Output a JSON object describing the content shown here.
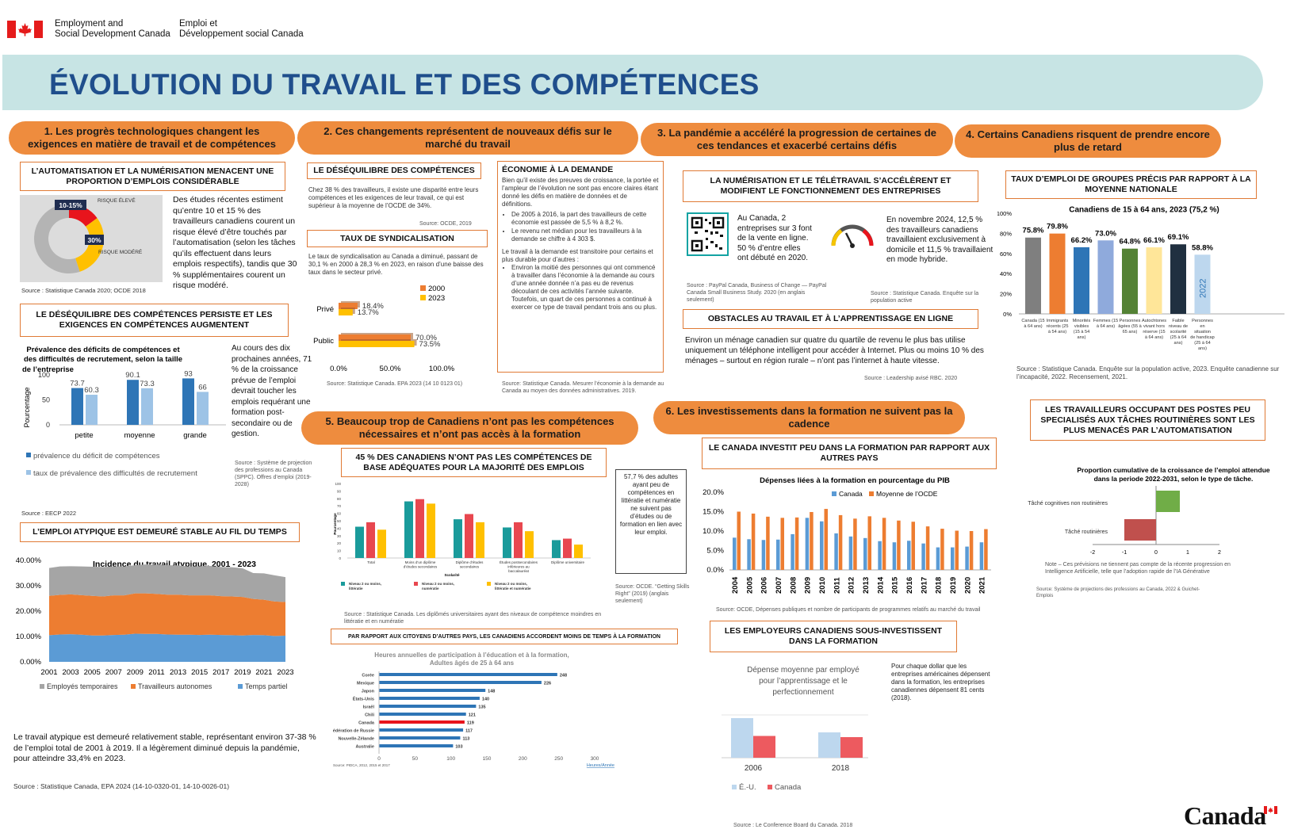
{
  "header": {
    "dept_en_line1": "Employment and",
    "dept_en_line2": "Social Development Canada",
    "dept_fr_line1": "Emploi et",
    "dept_fr_line2": "Développement social Canada",
    "wordmark": "Canada"
  },
  "title": "ÉVOLUTION DU TRAVAIL ET DES COMPÉTENCES",
  "sections": {
    "s1": "1. Les progrès technologiques changent les exigences en matière de travail et de compétences",
    "s2": "2. Ces changements représentent de nouveaux défis sur le marché du travail",
    "s3": "3. La pandémie a accéléré la progression de certaines de ces tendances et exacerbé certains défis",
    "s4": "4. Certains Canadiens risquent de prendre encore plus de retard",
    "s5": "5. Beaucoup trop de Canadiens n’ont pas les compétences nécessaires et n’ont pas accès à la formation",
    "s6": "6. Les investissements dans la formation ne suivent pas la cadence"
  },
  "auto": {
    "heading": "L’AUTOMATISATION ET LA NUMÉRISATION MENACENT UNE PROPORTION D’EMPLOIS CONSIDÉRABLE",
    "text": "Des études récentes estiment qu’entre 10 et 15 % des travailleurs canadiens courent un risque élevé d’être touchés par l’automatisation (selon les tâches qu’ils effectuent dans leurs emplois respectifs), tandis que 30 % supplémentaires courent un risque modéré.",
    "source": "Source : Statistique Canada 2020; OCDE 2018"
  },
  "skills_gap": {
    "heading": "LE DÉSÉQUILIBRE DES COMPÉTENCES PERSISTE ET LES EXIGENCES EN COMPÉTENCES AUGMENTENT",
    "side_text": "Au cours des dix prochaines années, 71 % de la croissance prévue de l’emploi devrait toucher les emplois requérant une formation post-secondaire ou de gestion.",
    "side_source": "Source : Système de projection des professions au Canada (SPPC). Offres d’emploi (2019-2028)",
    "source": "Source : EECP 2022"
  },
  "atypical": {
    "heading": "L’EMPLOI ATYPIQUE EST DEMEURÉ STABLE AU FIL DU TEMPS",
    "text": "Le travail atypique est demeuré relativement stable, représentant environ 37-38 % de l’emploi total de 2001 à 2019. Il a légèrement diminué depuis la pandémie, pour atteindre 33,4% en 2023.",
    "source": "Source : Statistique Canada, EPA 2024  (14-10-0320-01, 14-10-0026-01)"
  },
  "imbalance": {
    "heading": "LE DÉSÉQUILIBRE DES COMPÉTENCES",
    "text": "Chez 38 % des travailleurs, il existe une disparité entre leurs compétences et les exigences de leur travail, ce qui est supérieur à la moyenne de l’OCDE de 34%.",
    "source": "Source: OCDE, 2019"
  },
  "union": {
    "heading": "TAUX DE SYNDICALISATION",
    "text": "Le taux de syndicalisation au Canada a diminué, passant de 30,1 % en 2000  à 28,3 % en 2023, en raison d’une baisse des taux dans le secteur privé.",
    "source": "Source: Statistique Canada. EPA 2023 (14 10 0123 01)"
  },
  "gig": {
    "heading": "ÉCONOMIE À LA DEMANDE",
    "intro": "Bien qu’il existe des preuves de croissance, la portée et l’ampleur de l’évolution ne sont pas encore claires étant donné les défis en matière de données et de définitions.",
    "bullet1": "De 2005 à 2016, la part des travailleurs de cette économie est passée de 5,5 % à 8,2 %.",
    "bullet2": "Le revenu net médian pour les travailleurs à la demande se chiffre à 4 303 $.",
    "mid": "Le travail à la demande est transitoire pour certains et plus durable pour d’autres :",
    "bullet3": "Environ la moitié des personnes qui ont commencé à travailler dans l’économie à la demande au cours d’une année donnée n’a pas eu de revenus découlant de ces activités l’année suivante. Toutefois, un quart de ces personnes a continué à exercer ce type de travail pendant trois ans ou plus.",
    "source": "Source: Statistique Canada. Mesurer l’économie à la demande au Canada au moyen des données administratives. 2019."
  },
  "digital": {
    "heading": "LA NUMÉRISATION ET LE TÉLÉTRAVAIL S’ACCÉLÈRENT ET MODIFIENT LE FONCTIONNEMENT DES ENTREPRISES",
    "qr_text": "Au Canada, 2 entreprises sur 3 font de la vente en ligne. 50 % d’entre elles ont débuté en 2020.",
    "qr_source": "Source : PayPal Canada, Business of Change — PayPal Canada Small Business Study. 2020  (en anglais seulement)",
    "remote_text": "En novembre 2024, 12,5 % des travailleurs canadiens travaillaient exclusivement à domicile et 11,5 % travaillaient en mode hybride.",
    "remote_source": "Source : Statistique Canada. Enquête sur la population active"
  },
  "online": {
    "heading": "OBSTACLES AU TRAVAIL ET À L’APPRENTISSAGE EN LIGNE",
    "text": "Environ un ménage canadien sur quatre du quartile de revenu le plus bas utilise uniquement un téléphone intelligent pour accéder à Internet. Plus ou moins 10 % des ménages – surtout en région rurale – n’ont pas l’internet à haute vitesse.",
    "source": "Source : Leadership avisé RBC. 2020"
  },
  "groups": {
    "heading": "TAUX D’EMPLOI DE GROUPES PRÉCIS PAR RAPPORT À LA MOYENNE NATIONALE",
    "source": "Source : Statistique Canada. Enquête sur la population active, 2023. Enquête canadienne sur l’incapacité, 2022. Recensement, 2021."
  },
  "routine": {
    "heading": "LES TRAVAILLEURS OCCUPANT DES POSTES PEU SPECIALISÉS AUX TÂCHES ROUTINIÈRES SONT LES PLUS MENACÉS PAR L’AUTOMATISATION",
    "note": "Note – Ces prévisions ne tiennent pas compte de la récente progression en Intelligence Artificielle, telle que l’adoption rapide de l’IA Générative",
    "source": "Source: Système de projections des professions au Canada,  2022 & Guichet-Emplois"
  },
  "basic": {
    "heading": "45 % DES CANADIENS N’ONT PAS LES COMPÉTENCES DE BASE ADÉQUATES POUR LA MAJORITÉ DES EMPLOIS",
    "side_text": "57,7 % des adultes ayant peu de compétences en littératie et numératie ne suivent pas d’études ou de formation en lien avec leur emploi.",
    "side_source": "Source: OCDE. “Getting Skills Right” (2019) (anglais seulement)",
    "source": "Source : Statistique Canada. Les diplômés universitaires ayant des niveaux de compétence moindres en littératie et en numératie"
  },
  "hours": {
    "heading": "PAR RAPPORT AUX CITOYENS D’AUTRES PAYS, LES CANADIENS ACCORDENT MOINS DE TEMPS À LA FORMATION"
  },
  "invest": {
    "heading": "LE CANADA INVESTIT PEU DANS LA FORMATION PAR RAPPORT AUX AUTRES PAYS",
    "source": "Source: OCDE, Dépenses publiques et nombre de participants de programmes relatifs au marché du travail"
  },
  "employers": {
    "heading": "LES EMPLOYEURS CANADIENS SOUS-INVESTISSENT DANS LA FORMATION",
    "text": "Pour chaque dollar que les entreprises américaines dépensent dans la formation, les entreprises canadiennes dépensent 81 cents (2018).",
    "source": "Source : Le Conference Board du Canada. 2018"
  },
  "chart_data": [
    {
      "id": "automation_risk",
      "type": "pie",
      "slices": [
        {
          "label": "RISQUE ÉLEVÉ",
          "tag": "10-15%",
          "value": 15,
          "color": "#e8141c"
        },
        {
          "label": "RISQUE MODÉRÉ",
          "tag": "30%",
          "value": 30,
          "color": "#ffc000"
        },
        {
          "label": "",
          "value": 55,
          "color": "#b4b4b4"
        }
      ]
    },
    {
      "id": "skill_deficits",
      "type": "bar",
      "title": "Prévalence des déficits de compétences et des difficultés de recrutement, selon la taille de l’entreprise",
      "ylabel": "Pourcentage",
      "ylim": [
        0,
        100
      ],
      "yticks": [
        0,
        50,
        100
      ],
      "categories": [
        "petite",
        "moyenne",
        "grande"
      ],
      "series": [
        {
          "name": "prévalence du déficit de compétences",
          "values": [
            73.7,
            90.1,
            93
          ],
          "color": "#2e75b6"
        },
        {
          "name": "taux de prévalence des difficultés de recrutement",
          "values": [
            60.3,
            73.3,
            66
          ],
          "color": "#9dc3e6"
        }
      ]
    },
    {
      "id": "atypical_work",
      "type": "area",
      "title": "Incidence du travail atypique, 2001 - 2023",
      "x": [
        2001,
        2002,
        2003,
        2004,
        2005,
        2006,
        2007,
        2008,
        2009,
        2010,
        2011,
        2012,
        2013,
        2014,
        2015,
        2016,
        2017,
        2018,
        2019,
        2020,
        2021,
        2022,
        2023
      ],
      "xticks": [
        2001,
        2003,
        2005,
        2007,
        2009,
        2011,
        2013,
        2015,
        2017,
        2019,
        2021,
        2023
      ],
      "ylim": [
        0,
        0.4
      ],
      "yticks": [
        "0.00%",
        "10.00%",
        "20.00%",
        "30.00%",
        "40.00%"
      ],
      "series": [
        {
          "name": "Temps partiel",
          "color": "#5b9bd5",
          "values": [
            10.5,
            10.8,
            10.9,
            10.7,
            10.4,
            10.4,
            10.6,
            10.7,
            11.1,
            11.0,
            11.0,
            10.8,
            10.7,
            10.7,
            10.6,
            10.7,
            10.6,
            10.5,
            10.4,
            10.6,
            10.5,
            10.2,
            10.3
          ]
        },
        {
          "name": "Travailleurs autonomes",
          "color": "#ed7d31",
          "values": [
            15.5,
            15.6,
            15.7,
            15.6,
            15.6,
            15.4,
            15.6,
            15.5,
            15.9,
            16.0,
            15.8,
            15.7,
            15.8,
            15.5,
            15.6,
            15.5,
            15.3,
            15.3,
            15.2,
            14.2,
            14.0,
            13.6,
            13.3
          ]
        },
        {
          "name": "Employés temporaires",
          "color": "#a5a5a5",
          "values": [
            11.0,
            11.2,
            11.1,
            11.3,
            11.5,
            11.6,
            11.4,
            11.4,
            11.1,
            11.4,
            11.5,
            11.6,
            11.5,
            11.4,
            11.5,
            11.6,
            11.5,
            11.5,
            11.3,
            10.2,
            10.4,
            10.3,
            9.8
          ]
        }
      ]
    },
    {
      "id": "unionization",
      "type": "bar",
      "categories": [
        "Privé",
        "Public"
      ],
      "xlim": [
        0,
        100
      ],
      "xticks": [
        "0.0%",
        "50.0%",
        "100.0%"
      ],
      "series": [
        {
          "name": "2000",
          "values": [
            18.4,
            70.0
          ],
          "labels": [
            "18.4%",
            "70.0%"
          ],
          "color": "#ed7d31"
        },
        {
          "name": "2023",
          "values": [
            13.7,
            73.5
          ],
          "labels": [
            "13.7%",
            "73.5%"
          ],
          "color": "#ffc000"
        }
      ]
    },
    {
      "id": "group_employment",
      "type": "bar",
      "title": "Canadiens de 15 à 64 ans, 2023 (75,2 %)",
      "ylim": [
        0,
        100
      ],
      "yticks": [
        "0%",
        "20%",
        "40%",
        "60%",
        "80%",
        "100%"
      ],
      "categories": [
        "Canada (15 à 64 ans)",
        "Immigrants récents (25 à 54 ans)",
        "Minorités visibles (15 à 54 ans)",
        "Femmes (15 à 64 ans)",
        "Personnes âgées (55 à 65 ans)",
        "Autochtones vivant hors réserve (15 à 64 ans)",
        "Faible niveau de scolarité (25 à 64 ans)",
        "Personnes en situation de handicap (25 à 64 ans)"
      ],
      "values": [
        75.8,
        79.8,
        66.2,
        73.0,
        64.8,
        66.1,
        69.1,
        58.8
      ],
      "labels": [
        "75.8%",
        "79.8%",
        "66.2%",
        "73.0%",
        "64.8%",
        "66.1%",
        "69.1%",
        "58.8%"
      ],
      "colors": [
        "#7f7f7f",
        "#ed7d31",
        "#2e75b6",
        "#8faadc",
        "#548235",
        "#ffe699",
        "#203040",
        "#bdd7ee"
      ],
      "bar_note": "2022"
    },
    {
      "id": "routine_tasks",
      "type": "bar",
      "title": "Proportion cumulative de la croissance de l’emploi attendue dans la periode 2022-2031, selon le type de tâche.",
      "categories": [
        "Tâché cognitives non routinières",
        "Tâché routinières"
      ],
      "values": [
        0.75,
        -1.0
      ],
      "xlim": [
        -2,
        2
      ],
      "xticks": [
        "-2",
        "-1",
        "0",
        "1",
        "2"
      ],
      "colors": [
        "#70ad47",
        "#c0504d"
      ]
    },
    {
      "id": "basic_skills",
      "type": "bar",
      "ylabel": "Pourcentage",
      "ylim": [
        0,
        100
      ],
      "yticks": [
        0,
        10,
        20,
        30,
        40,
        50,
        60,
        70,
        80,
        90,
        100
      ],
      "categories": [
        "Total",
        "Moins d’un diplôme d’études secondaires",
        "Diplôme d’études secondaires",
        "Études postsecondaires inférieures au baccalauréat",
        "Diplôme universitaire"
      ],
      "xlabel": "Scolarité",
      "series": [
        {
          "name": "Niveau 2 ou moins, littératie",
          "values": [
            42,
            76,
            52,
            41,
            24
          ],
          "color": "#1a9b9b"
        },
        {
          "name": "Niveau 2 ou moins, numératie",
          "values": [
            48,
            79,
            59,
            48,
            26
          ],
          "color": "#e8474f"
        },
        {
          "name": "Niveau 2 ou moins, littératie et numératie",
          "values": [
            38,
            73,
            48,
            36,
            18
          ],
          "color": "#ffc000"
        }
      ]
    },
    {
      "id": "training_hours",
      "type": "bar",
      "title": "Heures annuelles de participation à l’éducation et à la formation, Adultes âgés de 25 à 64 ans",
      "categories": [
        "Corée",
        "Mexique",
        "Japon",
        "États-Unis",
        "Israël",
        "Chili",
        "Canada",
        "Fédération de Russie",
        "Nouvelle-Zélande",
        "Australie"
      ],
      "values": [
        248,
        226,
        148,
        140,
        135,
        121,
        119,
        117,
        113,
        103
      ],
      "highlight": "Canada",
      "xlim": [
        0,
        300
      ],
      "xticks": [
        0,
        50,
        100,
        150,
        200,
        250,
        300
      ],
      "xlabel": "Heures/Année",
      "source": "Source: PIDCA, 2012, 2015 et 2017"
    },
    {
      "id": "training_gdp",
      "type": "bar",
      "title": "Dépenses liées à la formation en pourcentage du PIB",
      "x": [
        2004,
        2005,
        2006,
        2007,
        2008,
        2009,
        2010,
        2011,
        2012,
        2013,
        2014,
        2015,
        2016,
        2017,
        2018,
        2019,
        2020,
        2021
      ],
      "ylim": [
        0,
        20
      ],
      "yticks": [
        "0.0%",
        "5.0%",
        "10.0%",
        "15.0%",
        "20.0%"
      ],
      "series": [
        {
          "name": "Canada",
          "color": "#5b9bd5",
          "values": [
            8.3,
            7.9,
            7.7,
            7.8,
            9.2,
            13.4,
            12.5,
            9.4,
            8.6,
            8.2,
            7.4,
            7.1,
            7.5,
            6.8,
            5.8,
            5.8,
            6.0,
            7.1
          ]
        },
        {
          "name": "Moyenne de l’OCDE",
          "color": "#ed7d31",
          "values": [
            15.0,
            14.5,
            13.7,
            13.4,
            13.5,
            14.9,
            15.7,
            14.1,
            13.2,
            13.8,
            13.4,
            12.7,
            12.4,
            11.2,
            10.6,
            10.1,
            10.0,
            10.5
          ]
        }
      ]
    },
    {
      "id": "employer_spending",
      "type": "bar",
      "title": "Dépense moyenne par employé pour l’apprentissage et le perfectionnement",
      "categories": [
        "2006",
        "2018"
      ],
      "series": [
        {
          "name": "É.-U.",
          "values": [
            100,
            64
          ],
          "color": "#bdd7ee"
        },
        {
          "name": "Canada",
          "values": [
            55,
            52
          ],
          "color": "#ed5a5f"
        }
      ]
    }
  ]
}
